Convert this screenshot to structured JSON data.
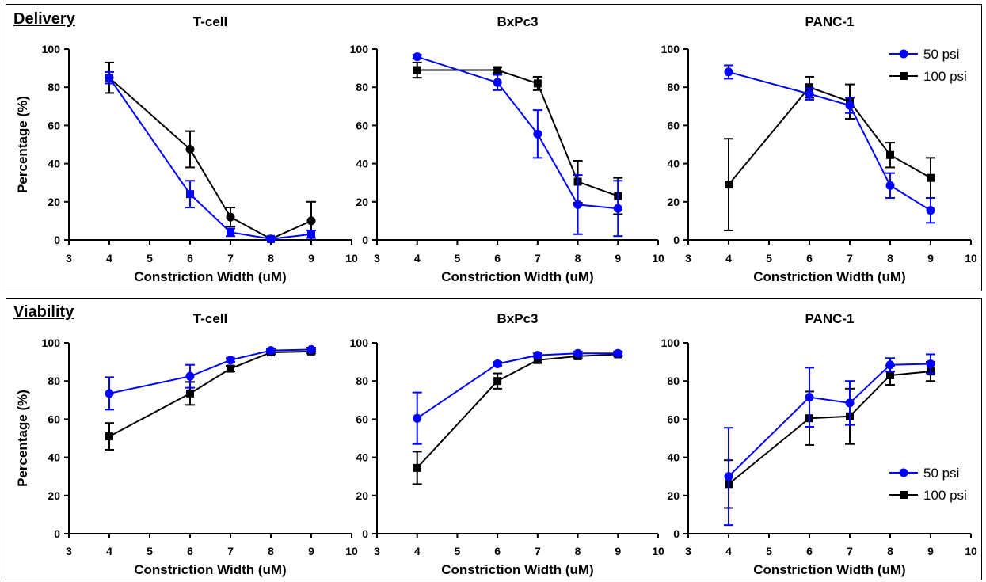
{
  "colors": {
    "blue": "#0000ff",
    "black": "#000000"
  },
  "panels": [
    {
      "label": "Delivery"
    },
    {
      "label": "Viability"
    }
  ],
  "legend": {
    "items": [
      "50 psi",
      "100 psi"
    ]
  },
  "chart_data": [
    {
      "type": "line",
      "panel": 0,
      "title": "T-cell",
      "xlabel": "Constriction Width (uM)",
      "ylabel": "Percentage (%)",
      "xlim": [
        3,
        10
      ],
      "ylim": [
        0,
        100
      ],
      "xticks": [
        "3",
        "4",
        "5",
        "6",
        "7",
        "8",
        "9",
        "10"
      ],
      "yticks": [
        "0",
        "20",
        "40",
        "60",
        "80",
        "100"
      ],
      "series": [
        {
          "name": "50 psi",
          "color": "blue",
          "marker": "square",
          "x": [
            4,
            6,
            7,
            8,
            9
          ],
          "y": [
            85,
            24,
            4,
            0.5,
            3
          ],
          "err": [
            3,
            7,
            2,
            1,
            2
          ]
        },
        {
          "name": "100 psi",
          "color": "black",
          "marker": "circle",
          "x": [
            4,
            6,
            7,
            8,
            9
          ],
          "y": [
            85,
            47.5,
            12,
            0.5,
            10
          ],
          "err": [
            8,
            9.5,
            5,
            1,
            10
          ]
        }
      ]
    },
    {
      "type": "line",
      "panel": 0,
      "title": "BxPc3",
      "xlabel": "Constriction Width (uM)",
      "ylabel": "",
      "xlim": [
        3,
        10
      ],
      "ylim": [
        0,
        100
      ],
      "xticks": [
        "3",
        "4",
        "5",
        "6",
        "7",
        "8",
        "9",
        "10"
      ],
      "yticks": [
        "0",
        "20",
        "40",
        "60",
        "80",
        "100"
      ],
      "series": [
        {
          "name": "50 psi",
          "color": "blue",
          "marker": "circle",
          "x": [
            4,
            6,
            7,
            8,
            9
          ],
          "y": [
            96,
            82.5,
            55.5,
            18.5,
            16.5
          ],
          "err": [
            1,
            4,
            12.5,
            15.5,
            14.5
          ]
        },
        {
          "name": "100 psi",
          "color": "black",
          "marker": "square",
          "x": [
            4,
            6,
            7,
            8,
            9
          ],
          "y": [
            89,
            89,
            82,
            30.5,
            23
          ],
          "err": [
            4,
            1.5,
            3.5,
            11,
            9.5
          ]
        }
      ]
    },
    {
      "type": "line",
      "panel": 0,
      "title": "PANC-1",
      "xlabel": "Constriction Width (uM)",
      "ylabel": "",
      "xlim": [
        3,
        10
      ],
      "ylim": [
        0,
        100
      ],
      "xticks": [
        "3",
        "4",
        "5",
        "6",
        "7",
        "8",
        "9",
        "10"
      ],
      "yticks": [
        "0",
        "20",
        "40",
        "60",
        "80",
        "100"
      ],
      "legend": true,
      "series": [
        {
          "name": "50 psi",
          "color": "blue",
          "marker": "circle",
          "x": [
            4,
            6,
            7,
            8,
            9
          ],
          "y": [
            88,
            76.5,
            70.5,
            28.5,
            15.5
          ],
          "err": [
            3.5,
            3,
            4,
            6.5,
            6.5
          ]
        },
        {
          "name": "100 psi",
          "color": "black",
          "marker": "square",
          "x": [
            4,
            6,
            7,
            8,
            9
          ],
          "y": [
            29,
            80,
            72.5,
            44.5,
            32.5
          ],
          "err": [
            24,
            5.5,
            9,
            6.5,
            10.5
          ]
        }
      ]
    },
    {
      "type": "line",
      "panel": 1,
      "title": "T-cell",
      "xlabel": "Constriction Width (uM)",
      "ylabel": "Percentage (%)",
      "xlim": [
        3,
        10
      ],
      "ylim": [
        0,
        100
      ],
      "xticks": [
        "3",
        "4",
        "5",
        "6",
        "7",
        "8",
        "9",
        "10"
      ],
      "yticks": [
        "0",
        "20",
        "40",
        "60",
        "80",
        "100"
      ],
      "series": [
        {
          "name": "50 psi",
          "color": "blue",
          "marker": "circle",
          "x": [
            4,
            6,
            7,
            8,
            9
          ],
          "y": [
            73.5,
            82.5,
            91,
            96,
            96.5
          ],
          "err": [
            8.5,
            6,
            1,
            1,
            1
          ]
        },
        {
          "name": "100 psi",
          "color": "black",
          "marker": "square",
          "x": [
            4,
            6,
            7,
            8,
            9
          ],
          "y": [
            51,
            73.5,
            86.5,
            95,
            95.5
          ],
          "err": [
            7,
            6,
            1.5,
            1,
            1
          ]
        }
      ]
    },
    {
      "type": "line",
      "panel": 1,
      "title": "BxPc3",
      "xlabel": "Constriction Width (uM)",
      "ylabel": "",
      "xlim": [
        3,
        10
      ],
      "ylim": [
        0,
        100
      ],
      "xticks": [
        "3",
        "4",
        "5",
        "6",
        "7",
        "8",
        "9",
        "10"
      ],
      "yticks": [
        "0",
        "20",
        "40",
        "60",
        "80",
        "100"
      ],
      "series": [
        {
          "name": "50 psi",
          "color": "blue",
          "marker": "circle",
          "x": [
            4,
            6,
            7,
            8,
            9
          ],
          "y": [
            60.5,
            89,
            93.5,
            94.5,
            94.5
          ],
          "err": [
            13.5,
            1,
            1,
            1,
            1
          ]
        },
        {
          "name": "100 psi",
          "color": "black",
          "marker": "square",
          "x": [
            4,
            6,
            7,
            8,
            9
          ],
          "y": [
            34.5,
            80,
            91,
            93,
            94
          ],
          "err": [
            8.5,
            4,
            1.5,
            1,
            1
          ]
        }
      ]
    },
    {
      "type": "line",
      "panel": 1,
      "title": "PANC-1",
      "xlabel": "Constriction Width (uM)",
      "ylabel": "",
      "xlim": [
        3,
        10
      ],
      "ylim": [
        0,
        100
      ],
      "xticks": [
        "3",
        "4",
        "5",
        "6",
        "7",
        "8",
        "9",
        "10"
      ],
      "yticks": [
        "0",
        "20",
        "40",
        "60",
        "80",
        "100"
      ],
      "legend": true,
      "series": [
        {
          "name": "50 psi",
          "color": "blue",
          "marker": "circle",
          "x": [
            4,
            6,
            7,
            8,
            9
          ],
          "y": [
            30,
            71.5,
            68.5,
            88.5,
            89
          ],
          "err": [
            25.5,
            15.5,
            11.5,
            3.5,
            5
          ]
        },
        {
          "name": "100 psi",
          "color": "black",
          "marker": "square",
          "x": [
            4,
            6,
            7,
            8,
            9
          ],
          "y": [
            26,
            60.5,
            61.5,
            83,
            85
          ],
          "err": [
            12.5,
            14,
            14.5,
            5,
            5
          ]
        }
      ]
    }
  ]
}
